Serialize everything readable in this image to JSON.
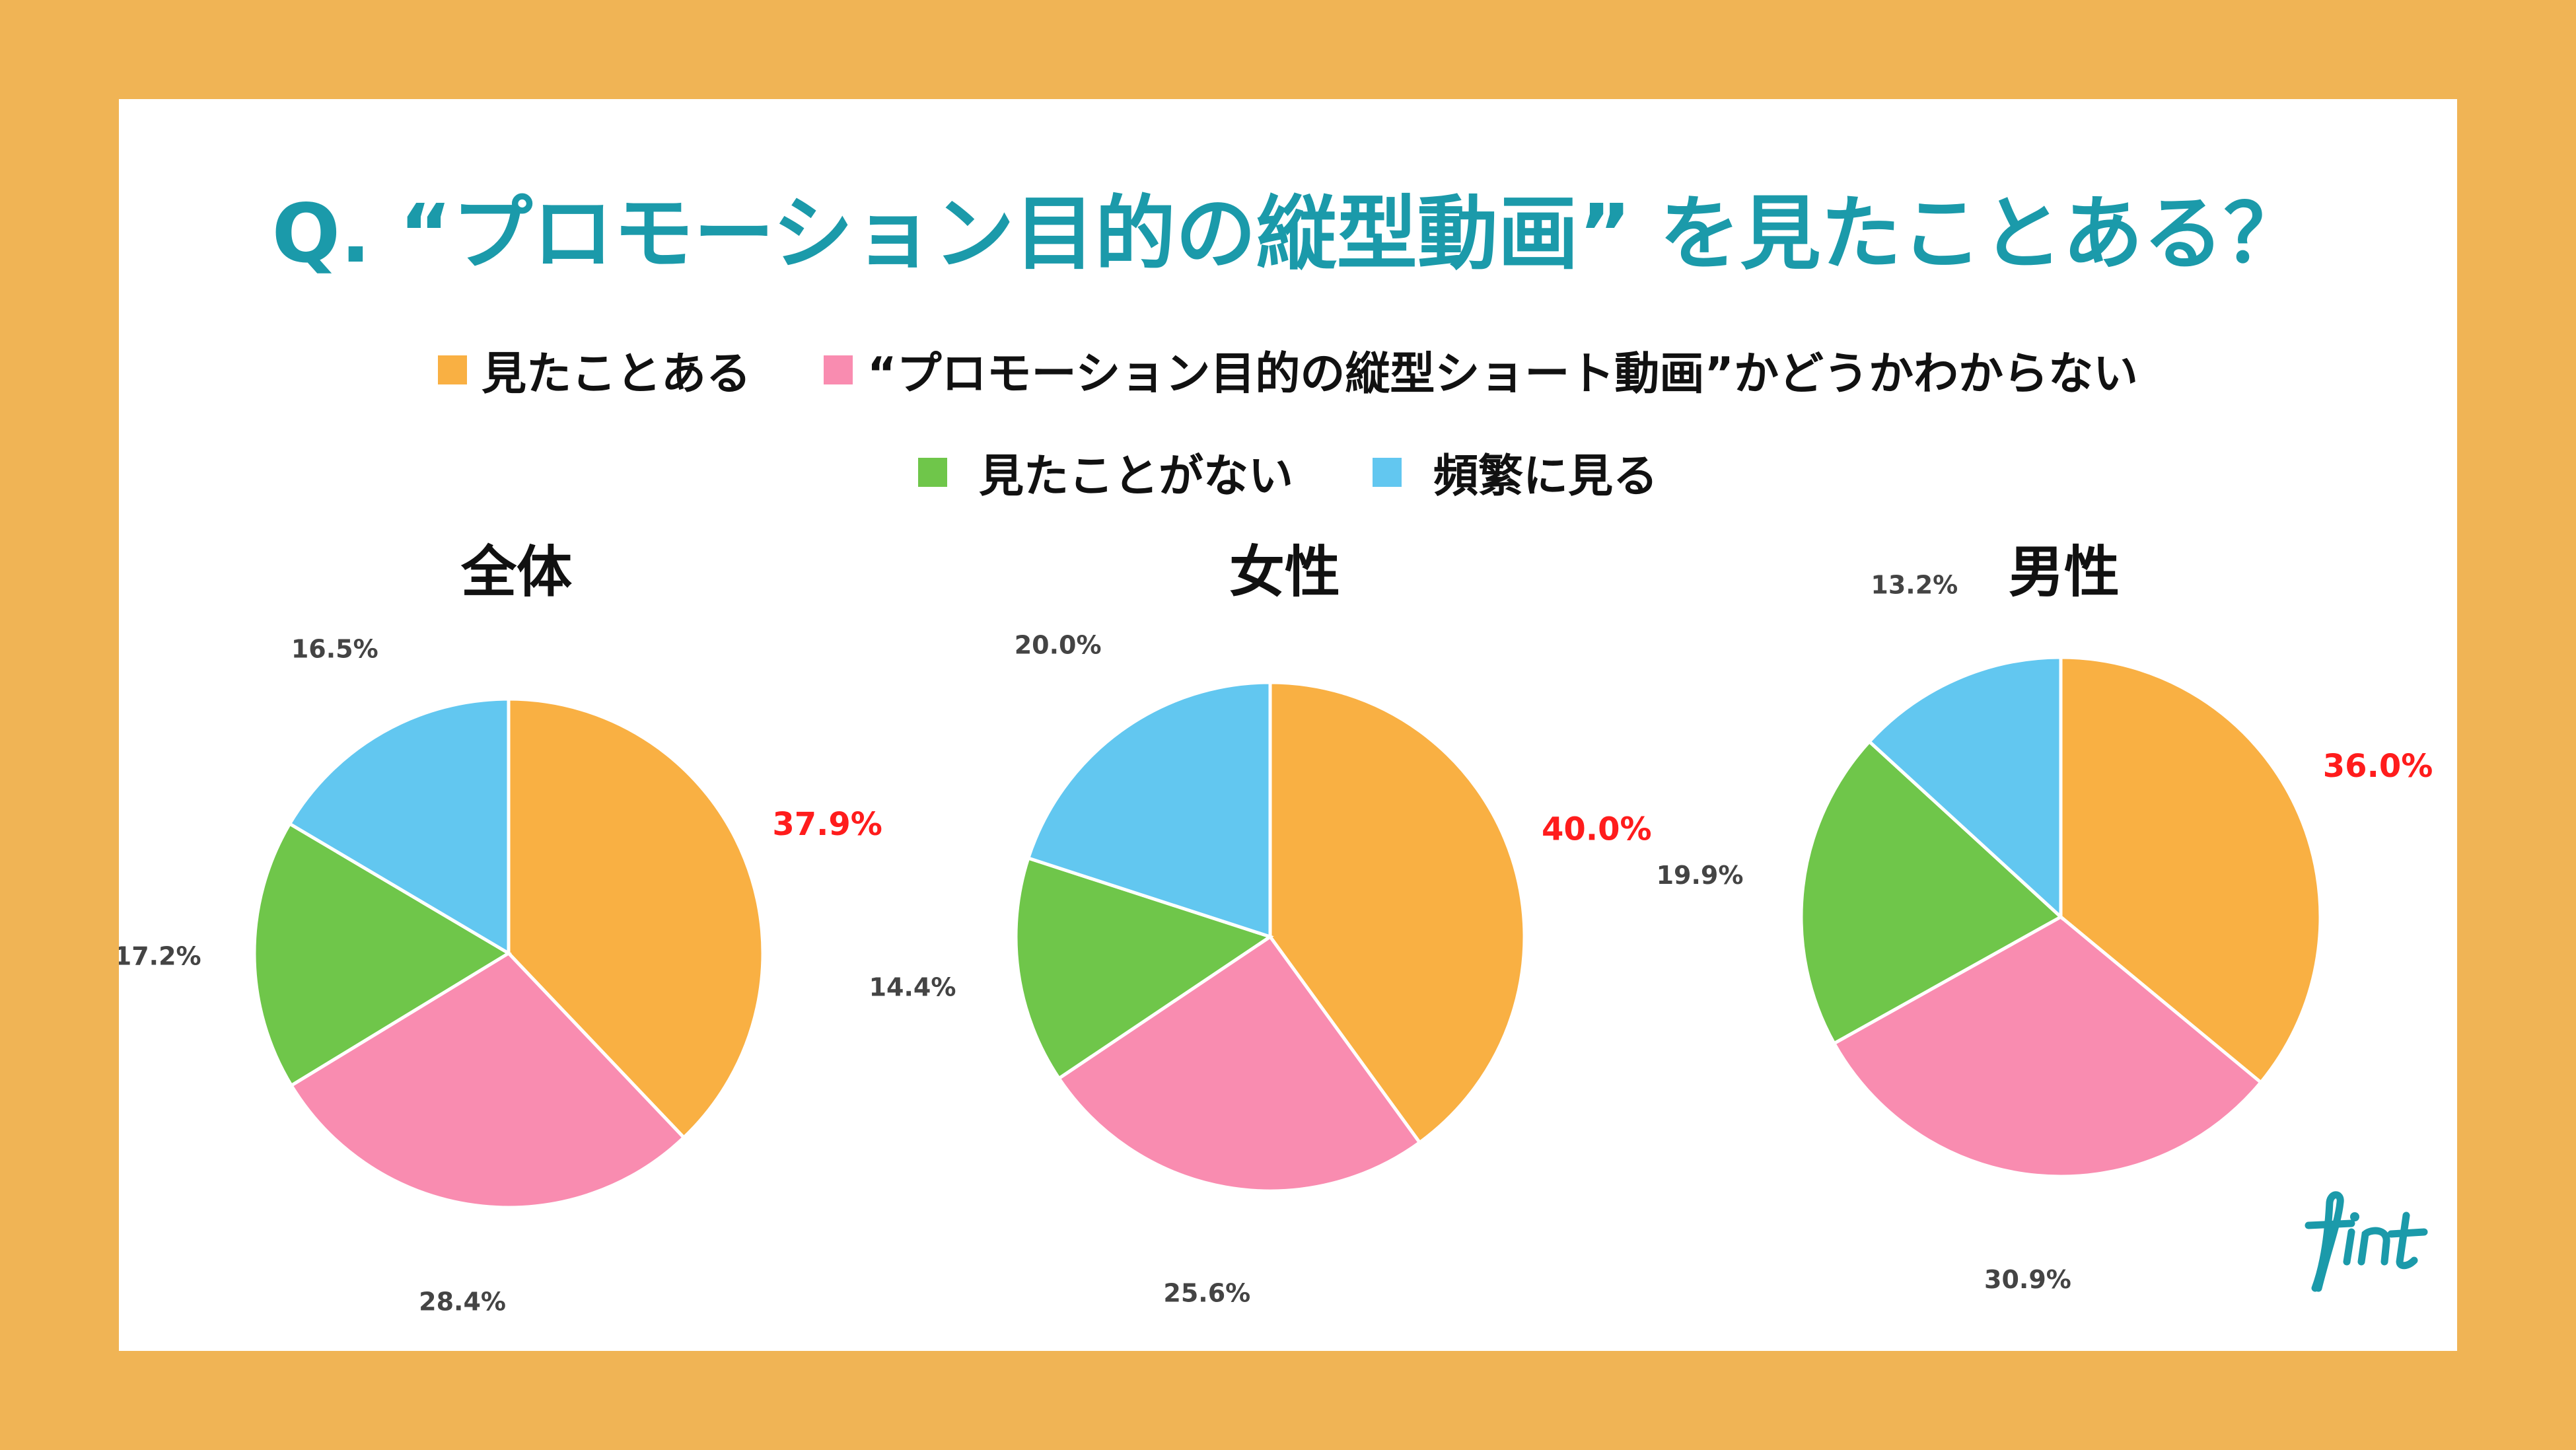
{
  "title": "Q. “プロモーション目的の縦型動画” を見たことある？",
  "legend": [
    {
      "label": "見たことある",
      "color": "#F9B043"
    },
    {
      "label": "“プロモーション目的の縦型ショート動画”かどうかわからない",
      "color": "#F98CB0"
    },
    {
      "label": "見たことがない",
      "color": "#6FC64A"
    },
    {
      "label": "頻繁に見る",
      "color": "#62C7F0"
    }
  ],
  "chart_data": [
    {
      "type": "pie",
      "title": "全体",
      "categories": [
        "見たことある",
        "“プロモーション目的の縦型ショート動画”かどうかわからない",
        "見たことがない",
        "頻繁に見る"
      ],
      "values": [
        37.9,
        28.4,
        17.2,
        16.5
      ],
      "labels": [
        "37.9%",
        "28.4%",
        "17.2%",
        "16.5%"
      ],
      "highlight_index": 0
    },
    {
      "type": "pie",
      "title": "女性",
      "categories": [
        "見たことある",
        "“プロモーション目的の縦型ショート動画”かどうかわからない",
        "見たことがない",
        "頻繁に見る"
      ],
      "values": [
        40.0,
        25.6,
        14.4,
        20.0
      ],
      "labels": [
        "40.0%",
        "25.6%",
        "14.4%",
        "20.0%"
      ],
      "highlight_index": 0
    },
    {
      "type": "pie",
      "title": "男性",
      "categories": [
        "見たことある",
        "“プロモーション目的の縦型ショート動画”かどうかわからない",
        "見たことがない",
        "頻繁に見る"
      ],
      "values": [
        36.0,
        30.9,
        19.9,
        13.2
      ],
      "labels": [
        "36.0%",
        "30.9%",
        "19.9%",
        "13.2%"
      ],
      "highlight_index": 0
    }
  ],
  "logo": {
    "text": "fint",
    "color": "#1B9AAA"
  }
}
